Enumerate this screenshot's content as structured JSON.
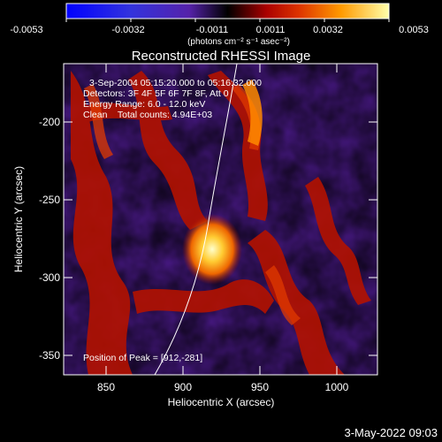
{
  "colorbar": {
    "tick_labels": [
      "-0.0053",
      "-0.0032",
      "-0.0011",
      "0.0011",
      "0.0032",
      "0.0053"
    ],
    "unit_label": "(photons cm⁻² s⁻¹ asec⁻²)"
  },
  "plot": {
    "title": "Reconstructed RHESSI Image",
    "xlabel": "Heliocentric X (arcsec)",
    "ylabel": "Heliocentric Y (arcsec)",
    "x_ticks": [
      "850",
      "900",
      "950",
      "1000"
    ],
    "y_ticks": [
      "-200",
      "-250",
      "-300",
      "-350"
    ]
  },
  "annotations": {
    "time_range": "3-Sep-2004 05:15:20.000 to 05:16:32.000",
    "detectors": "Detectors: 3F 4F 5F 6F 7F 8F, Att 0",
    "energy_range": "Energy Range: 6.0 - 12.0 keV",
    "algorithm": "Clean    Total counts: 4.94E+03",
    "peak_position": "Position of Peak = [912,-281]"
  },
  "footer": {
    "date": "3-May-2022 09:03"
  },
  "colors": {
    "background": "#000000",
    "text": "#ffffff",
    "limb_line": "#ffffff"
  }
}
